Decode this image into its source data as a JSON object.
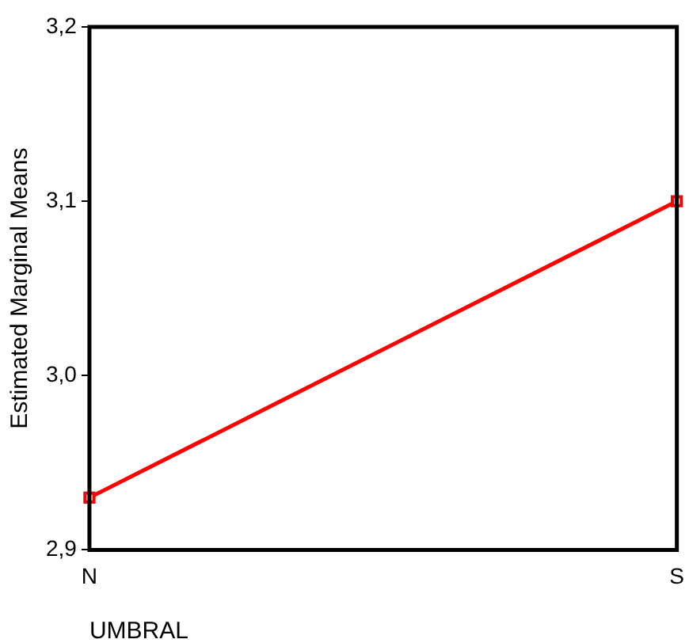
{
  "chart_data": {
    "type": "line",
    "xlabel": "UMBRAL",
    "ylabel": "Estimated Marginal Means",
    "categories": [
      "N",
      "S"
    ],
    "series": [
      {
        "color": "#ff0000",
        "values": [
          2.93,
          3.1
        ]
      }
    ],
    "ylim": [
      2.9,
      3.2
    ],
    "yticks": [
      {
        "value": 2.9,
        "label": "2,9"
      },
      {
        "value": 3.0,
        "label": "3,0"
      },
      {
        "value": 3.1,
        "label": "3,1"
      },
      {
        "value": 3.2,
        "label": "3,2"
      }
    ],
    "grid": false,
    "legend": false,
    "marker": "square",
    "line_style": "solid"
  }
}
